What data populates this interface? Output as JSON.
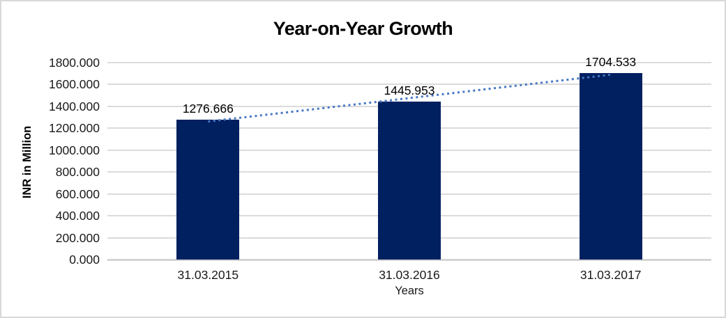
{
  "chart_data": {
    "type": "bar",
    "title": "Year-on-Year Growth",
    "xlabel": "Years",
    "ylabel": "INR in Million",
    "categories": [
      "31.03.2015",
      "31.03.2016",
      "31.03.2017"
    ],
    "values": [
      1276.666,
      1445.953,
      1704.533
    ],
    "data_labels": [
      "1276.666",
      "1445.953",
      "1704.533"
    ],
    "ylim": [
      0,
      1800
    ],
    "ytick_step": 200,
    "ytick_decimals": 3,
    "grid": true,
    "legend_position": "none",
    "bar_color": "#002060",
    "gridline_color": "#dbdbdb",
    "trendline": {
      "type": "linear",
      "style": "dotted",
      "color": "#4677c3"
    }
  }
}
